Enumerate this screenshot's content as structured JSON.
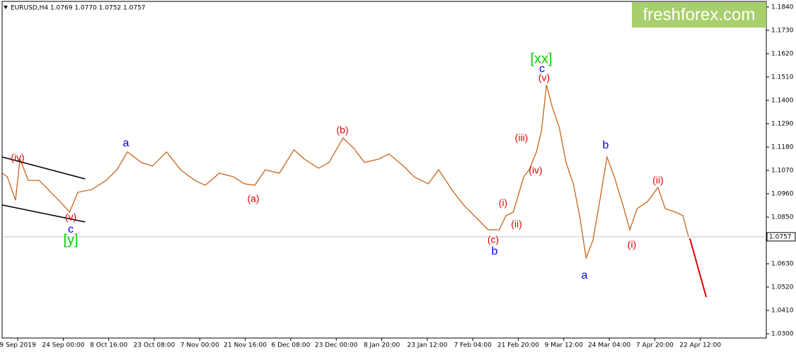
{
  "chart_data": {
    "type": "line",
    "header": "EURUSD,H4  1.0769 1.0770 1.0752 1.0757",
    "logo": "freshforex.com",
    "xlim": [
      -0.39,
      16.45
    ],
    "ylim": [
      1.028,
      1.1873
    ],
    "xticks": [
      {
        "value": 0,
        "label": "9 Sep 2019"
      },
      {
        "value": 1,
        "label": "24 Sep 00:00"
      },
      {
        "value": 2,
        "label": "8 Oct 16:00"
      },
      {
        "value": 3,
        "label": "23 Oct 08:00"
      },
      {
        "value": 4,
        "label": "7 Nov 00:00"
      },
      {
        "value": 5,
        "label": "21 Nov 16:00"
      },
      {
        "value": 6,
        "label": "6 Dec 08:00"
      },
      {
        "value": 7,
        "label": "23 Dec 00:00"
      },
      {
        "value": 8,
        "label": "8 Jan 20:00"
      },
      {
        "value": 9,
        "label": "23 Jan 12:00"
      },
      {
        "value": 10,
        "label": "7 Feb 04:00"
      },
      {
        "value": 11,
        "label": "21 Feb 20:00"
      },
      {
        "value": 12,
        "label": "9 Mar 12:00"
      },
      {
        "value": 13,
        "label": "24 Mar 04:00"
      },
      {
        "value": 14,
        "label": "7 Apr 20:00"
      },
      {
        "value": 15,
        "label": "22 Apr 12:00"
      }
    ],
    "yticks": [
      {
        "value": 1.184,
        "label": "1.1840"
      },
      {
        "value": 1.173,
        "label": "1.1730"
      },
      {
        "value": 1.162,
        "label": "1.1620"
      },
      {
        "value": 1.151,
        "label": "1.1510"
      },
      {
        "value": 1.14,
        "label": "1.1400"
      },
      {
        "value": 1.129,
        "label": "1.1290"
      },
      {
        "value": 1.118,
        "label": "1.1180"
      },
      {
        "value": 1.107,
        "label": "1.1070"
      },
      {
        "value": 1.096,
        "label": "1.0960"
      },
      {
        "value": 1.085,
        "label": "1.0850"
      },
      {
        "value": 1.063,
        "label": "1.0630"
      },
      {
        "value": 1.052,
        "label": "1.0520"
      },
      {
        "value": 1.041,
        "label": "1.0410"
      },
      {
        "value": 1.03,
        "label": "1.0300"
      }
    ],
    "last_price": 1.0757,
    "series": [
      {
        "color": "#c8651b",
        "x": [
          -0.34,
          -0.23,
          -0.05,
          0.05,
          0.23,
          0.47,
          0.7,
          0.93,
          1.14,
          1.32,
          1.63,
          1.94,
          2.18,
          2.41,
          2.72,
          2.96,
          3.27,
          3.58,
          3.89,
          4.12,
          4.43,
          4.74,
          4.98,
          5.21,
          5.44,
          5.75,
          6.07,
          6.3,
          6.61,
          6.84,
          7.15,
          7.39,
          7.62,
          7.93,
          8.16,
          8.48,
          8.71,
          9.02,
          9.25,
          9.56,
          9.8,
          10.11,
          10.34,
          10.58,
          10.73,
          10.89,
          11.12,
          11.24,
          11.4,
          11.51,
          11.62,
          11.74,
          11.9,
          12.05,
          12.21,
          12.36,
          12.49,
          12.64,
          12.8,
          12.95,
          13.11,
          13.3,
          13.45,
          13.61,
          13.84,
          14.07,
          14.23,
          14.46,
          14.62,
          14.74
        ],
        "values": [
          1.1057,
          1.104,
          1.093,
          1.1123,
          1.1023,
          1.1023,
          1.0973,
          1.0923,
          1.0873,
          1.0967,
          1.098,
          1.1023,
          1.1073,
          1.1157,
          1.1107,
          1.109,
          1.1157,
          1.1073,
          1.1023,
          1.1,
          1.1057,
          1.104,
          1.1007,
          1.1,
          1.1073,
          1.1057,
          1.1167,
          1.1123,
          1.108,
          1.1107,
          1.1223,
          1.1173,
          1.1107,
          1.1123,
          1.1147,
          1.109,
          1.104,
          1.1007,
          1.1073,
          1.0973,
          1.0907,
          1.084,
          1.079,
          1.079,
          1.0857,
          1.0873,
          1.104,
          1.1073,
          1.1157,
          1.1257,
          1.1473,
          1.1373,
          1.1273,
          1.1107,
          1.1007,
          1.084,
          1.0657,
          1.074,
          1.094,
          1.1133,
          1.104,
          1.0907,
          1.079,
          1.089,
          1.0923,
          1.099,
          1.089,
          1.0873,
          1.0857,
          1.0757
        ]
      },
      {
        "color": "#e00000",
        "x": [
          14.77,
          15.13
        ],
        "values": [
          1.075,
          1.0473
        ]
      },
      {
        "color": "#000000",
        "x": [
          -0.34,
          1.48
        ],
        "values": [
          1.1133,
          1.103
        ]
      },
      {
        "color": "#000000",
        "x": [
          -0.34,
          1.48
        ],
        "values": [
          1.0907,
          1.0827
        ]
      }
    ],
    "annotations": [
      {
        "text": "(iv)",
        "color": "#e00000"
      },
      {
        "text": "(v)",
        "color": "#e00000"
      },
      {
        "text": "c",
        "color": "#0000ff"
      },
      {
        "text": "[y]",
        "color": "#00d000"
      },
      {
        "text": "a",
        "color": "#0000ff"
      },
      {
        "text": "(a)",
        "color": "#e00000"
      },
      {
        "text": "(b)",
        "color": "#e00000"
      },
      {
        "text": "(c)",
        "color": "#e00000"
      },
      {
        "text": "b",
        "color": "#0000ff"
      },
      {
        "text": "(i)",
        "color": "#e00000"
      },
      {
        "text": "(ii)",
        "color": "#e00000"
      },
      {
        "text": "(iii)",
        "color": "#e00000"
      },
      {
        "text": "(iv)",
        "color": "#e00000"
      },
      {
        "text": "[xx]",
        "color": "#00d000"
      },
      {
        "text": "c",
        "color": "#0000ff"
      },
      {
        "text": "(v)",
        "color": "#e00000"
      },
      {
        "text": "b",
        "color": "#0000ff"
      },
      {
        "text": "a",
        "color": "#0000ff"
      },
      {
        "text": "(ii)",
        "color": "#e00000"
      },
      {
        "text": "(i)",
        "color": "#e00000"
      }
    ]
  }
}
